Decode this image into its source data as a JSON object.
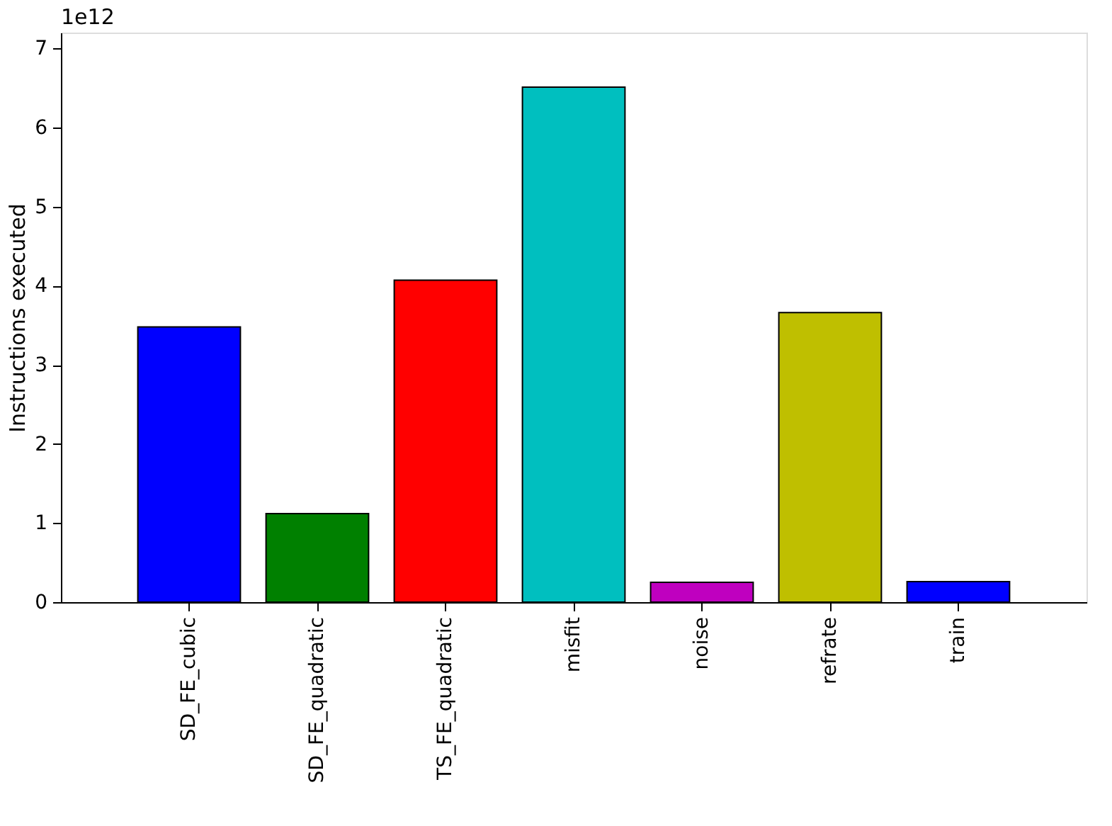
{
  "chart_data": {
    "type": "bar",
    "ylabel": "Instructions executed",
    "categories": [
      "SD_FE_cubic",
      "SD_FE_quadratic",
      "TS_FE_quadratic",
      "misfit",
      "noise",
      "refrate",
      "train"
    ],
    "values": [
      3.48,
      1.12,
      4.07,
      6.51,
      0.25,
      3.66,
      0.26
    ],
    "colors": [
      "#0000ff",
      "#008000",
      "#ff0000",
      "#00bfbf",
      "#bf00bf",
      "#bfbf00",
      "#0000ff"
    ],
    "ylim": [
      0,
      7.2
    ],
    "yticks": [
      0,
      1,
      2,
      3,
      4,
      5,
      6,
      7
    ],
    "grid": false,
    "annotations": [
      "1e12"
    ]
  }
}
